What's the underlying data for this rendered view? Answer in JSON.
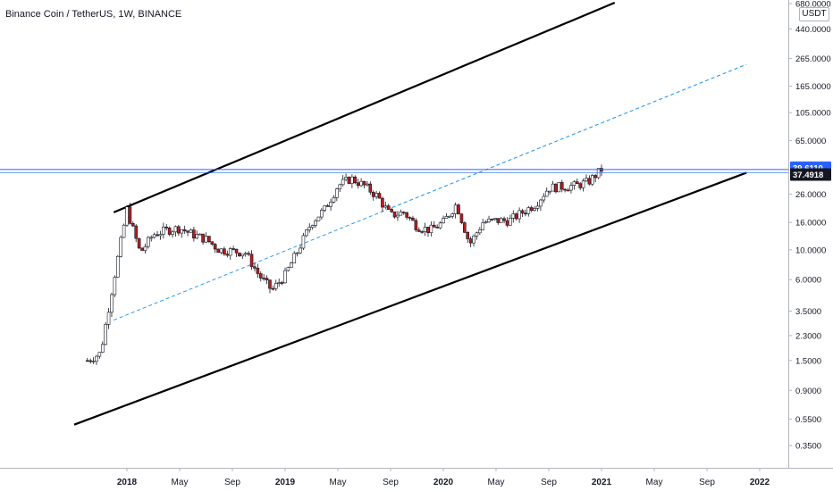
{
  "header": {
    "title": "Binance Coin / TetherUS, 1W, BINANCE"
  },
  "price_scale": {
    "currency": "USDT"
  },
  "chart_data": {
    "type": "candlestick",
    "title": "Binance Coin / TetherUS, 1W, BINANCE",
    "y_scale": "log",
    "ylim": [
      0.28,
      690
    ],
    "y_ticks": [
      "680.0000",
      "440.0000",
      "265.0000",
      "165.0000",
      "105.0000",
      "65.0000",
      "26.0000",
      "16.0000",
      "10.0000",
      "6.0000",
      "3.5000",
      "2.3000",
      "1.5000",
      "0.9000",
      "0.5500",
      "0.3500"
    ],
    "x_ticks": [
      "2018",
      "May",
      "Sep",
      "2019",
      "May",
      "Sep",
      "2020",
      "May",
      "Sep",
      "2021",
      "May",
      "Sep",
      "2022"
    ],
    "price_labels": [
      {
        "value": "39.6110",
        "color": "#2962ff"
      },
      {
        "value": "37.4918",
        "color": "#131722"
      }
    ],
    "horizontal_lines": [
      39.611,
      37.4918
    ],
    "trendlines": [
      {
        "name": "channel-upper",
        "color": "#000000",
        "style": "solid",
        "start": [
          "2017-12",
          19
        ],
        "end": [
          "2021-02",
          690
        ]
      },
      {
        "name": "channel-lower",
        "color": "#000000",
        "style": "solid",
        "start": [
          "2017-09",
          0.5
        ],
        "end": [
          "2021-12",
          37.49
        ]
      },
      {
        "name": "channel-mid",
        "color": "#2196f3",
        "style": "dashed",
        "start": [
          "2017-12",
          3.0
        ],
        "end": [
          "2021-12",
          240
        ]
      }
    ],
    "weekly_close_path": [
      [
        "2017-10",
        1.5
      ],
      [
        "2017-11",
        1.7
      ],
      [
        "2017-12",
        6.0
      ],
      [
        "2018-01",
        20.0
      ],
      [
        "2018-02",
        9.5
      ],
      [
        "2018-03",
        13.0
      ],
      [
        "2018-04",
        14.0
      ],
      [
        "2018-05",
        14.5
      ],
      [
        "2018-06",
        13.0
      ],
      [
        "2018-07",
        12.0
      ],
      [
        "2018-08",
        10.0
      ],
      [
        "2018-09",
        9.8
      ],
      [
        "2018-10",
        9.5
      ],
      [
        "2018-11",
        6.5
      ],
      [
        "2018-12",
        5.0
      ],
      [
        "2019-01",
        6.5
      ],
      [
        "2019-02",
        10.0
      ],
      [
        "2019-03",
        16.0
      ],
      [
        "2019-04",
        20.0
      ],
      [
        "2019-05",
        30.0
      ],
      [
        "2019-06",
        34.0
      ],
      [
        "2019-07",
        30.0
      ],
      [
        "2019-08",
        25.0
      ],
      [
        "2019-09",
        18.0
      ],
      [
        "2019-10",
        19.0
      ],
      [
        "2019-11",
        15.0
      ],
      [
        "2019-12",
        14.0
      ],
      [
        "2020-01",
        16.0
      ],
      [
        "2020-02",
        22.0
      ],
      [
        "2020-03",
        11.0
      ],
      [
        "2020-04",
        16.0
      ],
      [
        "2020-05",
        16.5
      ],
      [
        "2020-06",
        16.5
      ],
      [
        "2020-07",
        19.0
      ],
      [
        "2020-08",
        22.0
      ],
      [
        "2020-09",
        29.0
      ],
      [
        "2020-10",
        29.5
      ],
      [
        "2020-11",
        30.0
      ],
      [
        "2020-12",
        32.0
      ],
      [
        "2021-01",
        39.6
      ]
    ]
  }
}
